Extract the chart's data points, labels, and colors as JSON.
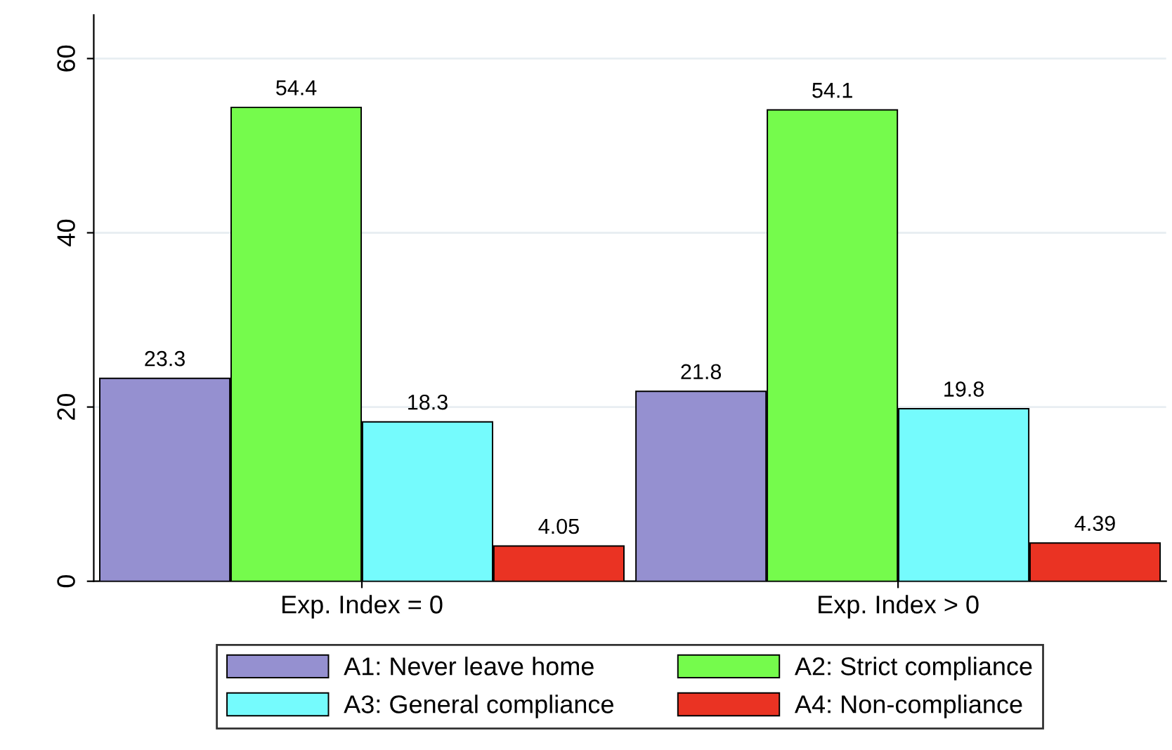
{
  "chart_data": {
    "type": "bar",
    "categories": [
      "Exp. Index = 0",
      "Exp. Index > 0"
    ],
    "series": [
      {
        "name": "A1: Never leave home",
        "color": "#9590d0",
        "values": [
          23.3,
          21.8
        ]
      },
      {
        "name": "A2: Strict compliance",
        "color": "#75fb4c",
        "values": [
          54.4,
          54.1
        ]
      },
      {
        "name": "A3: General compliance",
        "color": "#75fbfd",
        "values": [
          18.3,
          19.8
        ]
      },
      {
        "name": "A4: Non-compliance",
        "color": "#ea3323",
        "values": [
          4.05,
          4.39
        ]
      }
    ],
    "ylim": [
      0,
      65
    ],
    "yticks": [
      0,
      20,
      40,
      60
    ],
    "grid": "y",
    "legend": "bottom",
    "data_labels": true
  }
}
